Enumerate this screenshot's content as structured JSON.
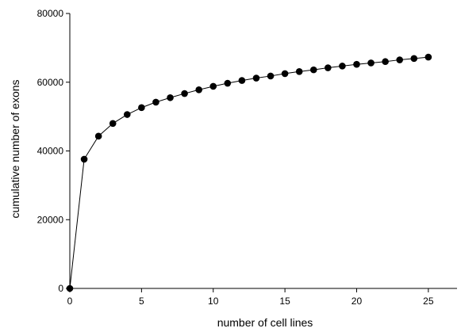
{
  "chart_data": {
    "type": "line",
    "title": "",
    "xlabel": "number of cell lines",
    "ylabel": "cumulative number of exons",
    "xlim": [
      0,
      27
    ],
    "ylim": [
      0,
      80000
    ],
    "x_ticks": [
      0,
      5,
      10,
      15,
      20,
      25
    ],
    "y_ticks": [
      0,
      20000,
      40000,
      60000,
      80000
    ],
    "grid": false,
    "legend": "none",
    "series": [
      {
        "x": [
          0,
          1,
          2,
          3,
          4,
          5,
          6,
          7,
          8,
          9,
          10,
          11,
          12,
          13,
          14,
          15,
          16,
          17,
          18,
          19,
          20,
          21,
          22,
          23,
          24,
          25
        ],
        "y": [
          0,
          37600,
          44300,
          48000,
          50600,
          52600,
          54200,
          55500,
          56700,
          57800,
          58800,
          59700,
          60500,
          61200,
          61800,
          62500,
          63100,
          63600,
          64200,
          64700,
          65200,
          65600,
          66000,
          66500,
          66900,
          67300
        ],
        "marker": "filled-circle",
        "color": "#000000"
      }
    ]
  }
}
